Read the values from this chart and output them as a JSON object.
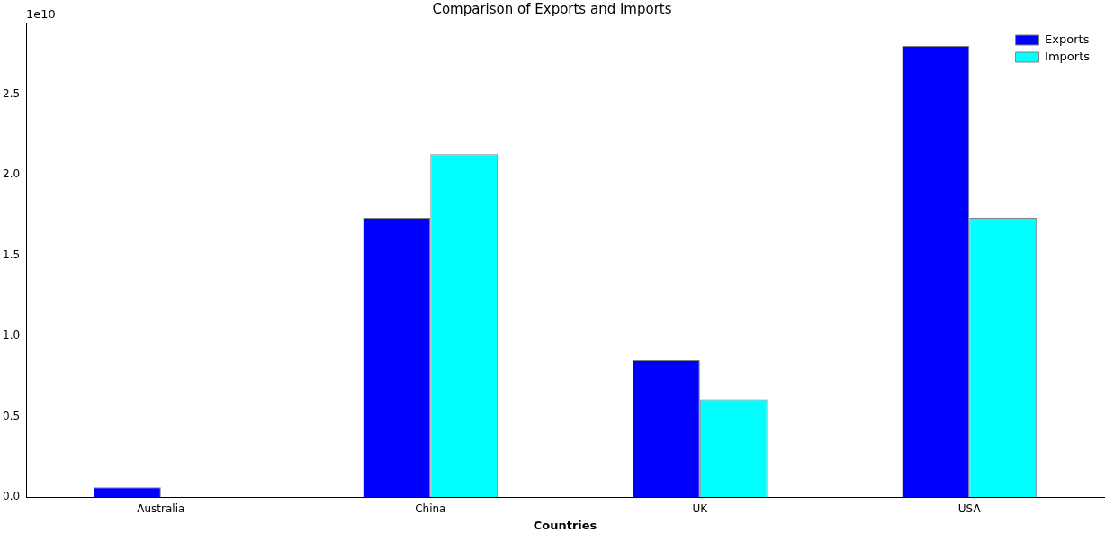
{
  "chart_data": {
    "type": "bar",
    "title": "Comparison of Exports and Imports",
    "xlabel": "Countries",
    "categories": [
      "Australia",
      "China",
      "UK",
      "USA"
    ],
    "series": [
      {
        "name": "Exports",
        "color": "#0000ff",
        "values": [
          0.06,
          1.733,
          0.85,
          2.8
        ]
      },
      {
        "name": "Imports",
        "color": "#00ffff",
        "values": [
          0,
          2.128,
          0.606,
          1.733
        ]
      }
    ],
    "ylim": [
      0,
      2.94
    ],
    "yticks": [
      {
        "value": 0,
        "label": "0.0"
      },
      {
        "value": 0.5,
        "label": "0.5"
      },
      {
        "value": 1,
        "label": "1.0"
      },
      {
        "value": 1.5,
        "label": "1.5"
      },
      {
        "value": 2,
        "label": "2.0"
      },
      {
        "value": 2.5,
        "label": "2.5"
      }
    ],
    "annotations": [
      "1e10"
    ],
    "legend": "top right",
    "grid": false
  }
}
